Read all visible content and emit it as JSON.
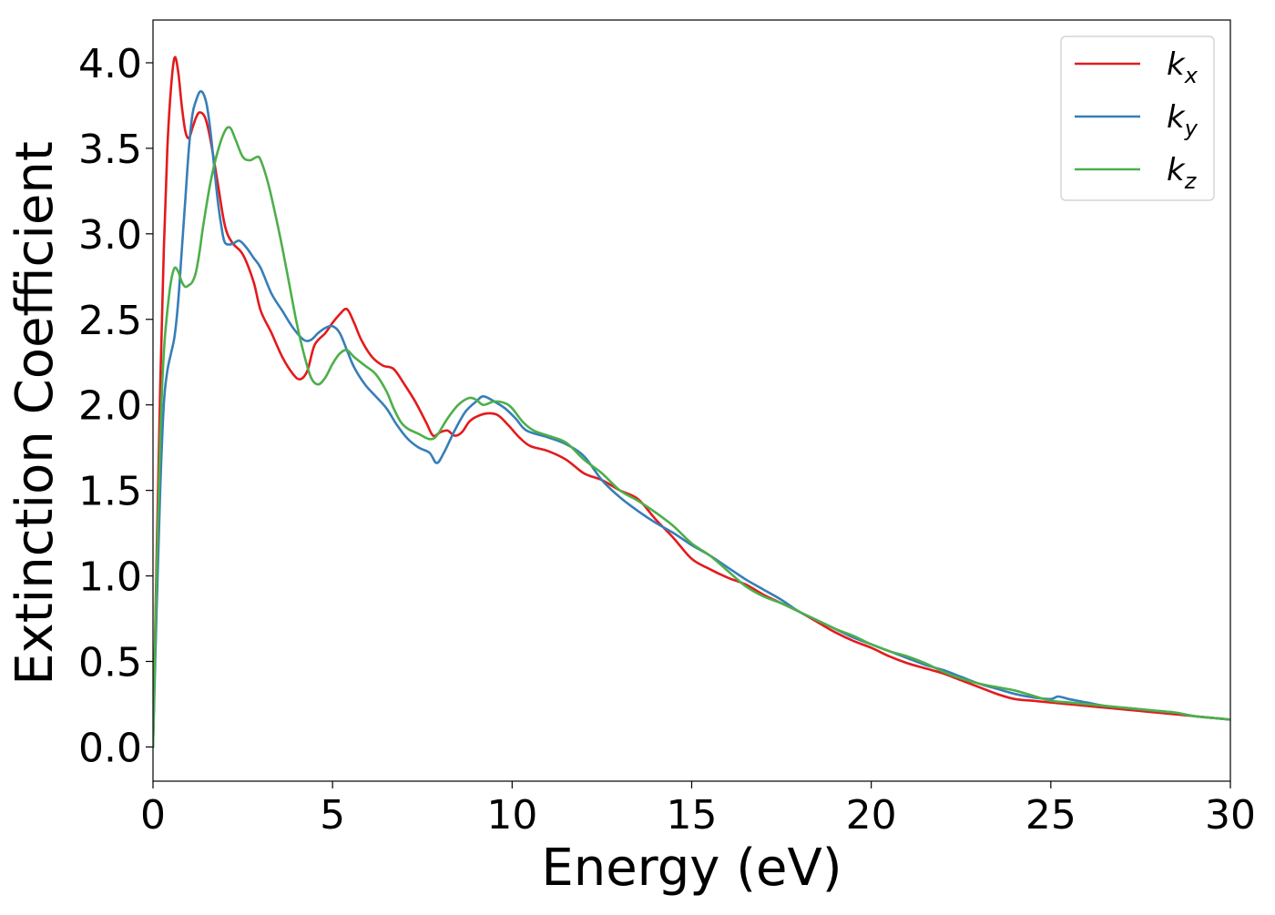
{
  "chart_data": {
    "type": "line",
    "title": "",
    "xlabel": "Energy (eV)",
    "ylabel": "Extinction Coefficient",
    "xlim": [
      0,
      30
    ],
    "ylim": [
      -0.2,
      4.25
    ],
    "xticks": [
      0,
      5,
      10,
      15,
      20,
      25,
      30
    ],
    "xtick_labels": [
      "0",
      "5",
      "10",
      "15",
      "20",
      "25",
      "30"
    ],
    "yticks": [
      0.0,
      0.5,
      1.0,
      1.5,
      2.0,
      2.5,
      3.0,
      3.5,
      4.0
    ],
    "ytick_labels": [
      "0.0",
      "0.5",
      "1.0",
      "1.5",
      "2.0",
      "2.5",
      "3.0",
      "3.5",
      "4.0"
    ],
    "grid": false,
    "legend_position": "top-right",
    "series": [
      {
        "name": "kx",
        "label_base": "k",
        "label_sub": "x",
        "color": "#e41a1c",
        "x": [
          0,
          0.1,
          0.2,
          0.3,
          0.4,
          0.5,
          0.6,
          0.7,
          0.8,
          0.9,
          1.0,
          1.1,
          1.2,
          1.3,
          1.45,
          1.6,
          1.8,
          2.0,
          2.2,
          2.5,
          2.8,
          3.0,
          3.3,
          3.6,
          3.9,
          4.1,
          4.3,
          4.5,
          4.8,
          5.0,
          5.2,
          5.4,
          5.6,
          5.8,
          6.1,
          6.4,
          6.7,
          7.0,
          7.3,
          7.6,
          7.8,
          8.0,
          8.2,
          8.4,
          8.6,
          8.8,
          9.0,
          9.3,
          9.6,
          9.9,
          10.2,
          10.5,
          11.0,
          11.5,
          12.0,
          12.5,
          13.0,
          13.5,
          14.0,
          14.5,
          15.0,
          15.5,
          16.0,
          16.5,
          17.0,
          17.5,
          18.0,
          18.5,
          19.0,
          19.5,
          20.0,
          20.5,
          21.0,
          21.5,
          22.0,
          22.5,
          23.0,
          23.5,
          24.0,
          24.5,
          25.0,
          25.5,
          26.0,
          26.5,
          27.0,
          27.5,
          28.0,
          28.5,
          29.0,
          29.5,
          30.0
        ],
        "y": [
          0.0,
          1.1,
          2.1,
          2.9,
          3.5,
          3.85,
          4.03,
          3.95,
          3.75,
          3.6,
          3.56,
          3.62,
          3.68,
          3.71,
          3.68,
          3.55,
          3.3,
          3.05,
          2.95,
          2.88,
          2.72,
          2.55,
          2.42,
          2.28,
          2.18,
          2.15,
          2.2,
          2.35,
          2.42,
          2.48,
          2.53,
          2.56,
          2.48,
          2.38,
          2.28,
          2.23,
          2.21,
          2.12,
          2.02,
          1.9,
          1.82,
          1.84,
          1.85,
          1.82,
          1.84,
          1.9,
          1.93,
          1.95,
          1.94,
          1.88,
          1.81,
          1.76,
          1.73,
          1.68,
          1.6,
          1.56,
          1.5,
          1.45,
          1.33,
          1.22,
          1.1,
          1.04,
          0.99,
          0.95,
          0.89,
          0.84,
          0.79,
          0.73,
          0.67,
          0.62,
          0.58,
          0.53,
          0.49,
          0.46,
          0.43,
          0.39,
          0.35,
          0.31,
          0.28,
          0.27,
          0.26,
          0.25,
          0.24,
          0.23,
          0.22,
          0.21,
          0.2,
          0.19,
          0.18,
          0.17,
          0.16
        ]
      },
      {
        "name": "ky",
        "label_base": "k",
        "label_sub": "y",
        "color": "#377eb8",
        "x": [
          0,
          0.1,
          0.2,
          0.3,
          0.4,
          0.5,
          0.6,
          0.7,
          0.8,
          0.9,
          1.0,
          1.1,
          1.2,
          1.3,
          1.4,
          1.5,
          1.6,
          1.7,
          1.8,
          1.9,
          2.0,
          2.2,
          2.4,
          2.6,
          2.8,
          3.0,
          3.3,
          3.6,
          3.9,
          4.2,
          4.4,
          4.6,
          4.8,
          5.0,
          5.2,
          5.4,
          5.6,
          5.9,
          6.2,
          6.5,
          6.8,
          7.1,
          7.4,
          7.7,
          7.9,
          8.1,
          8.4,
          8.7,
          9.0,
          9.2,
          9.5,
          9.8,
          10.1,
          10.4,
          11.0,
          11.5,
          12.0,
          12.5,
          13.0,
          13.5,
          14.0,
          14.5,
          15.0,
          15.5,
          16.0,
          16.5,
          17.0,
          17.5,
          18.0,
          18.5,
          19.0,
          19.5,
          20.0,
          20.5,
          21.0,
          21.5,
          22.0,
          22.5,
          23.0,
          23.5,
          24.0,
          24.5,
          25.0,
          25.2,
          25.5,
          26.0,
          26.5,
          27.0,
          27.5,
          28.0,
          28.5,
          29.0,
          29.5,
          30.0
        ],
        "y": [
          0.0,
          0.8,
          1.5,
          2.0,
          2.2,
          2.3,
          2.4,
          2.6,
          2.9,
          3.2,
          3.5,
          3.7,
          3.78,
          3.83,
          3.82,
          3.75,
          3.6,
          3.4,
          3.2,
          3.05,
          2.95,
          2.94,
          2.96,
          2.92,
          2.86,
          2.8,
          2.65,
          2.55,
          2.45,
          2.38,
          2.38,
          2.42,
          2.45,
          2.46,
          2.42,
          2.32,
          2.22,
          2.12,
          2.05,
          1.98,
          1.88,
          1.8,
          1.75,
          1.72,
          1.66,
          1.72,
          1.85,
          1.96,
          2.02,
          2.05,
          2.02,
          1.98,
          1.92,
          1.85,
          1.81,
          1.77,
          1.7,
          1.56,
          1.46,
          1.38,
          1.31,
          1.25,
          1.18,
          1.12,
          1.05,
          0.98,
          0.92,
          0.86,
          0.79,
          0.74,
          0.69,
          0.64,
          0.6,
          0.56,
          0.52,
          0.48,
          0.45,
          0.41,
          0.37,
          0.34,
          0.31,
          0.29,
          0.28,
          0.295,
          0.28,
          0.26,
          0.24,
          0.23,
          0.22,
          0.21,
          0.2,
          0.18,
          0.17,
          0.16
        ]
      },
      {
        "name": "kz",
        "label_base": "k",
        "label_sub": "z",
        "color": "#4daf4a",
        "x": [
          0,
          0.1,
          0.2,
          0.3,
          0.4,
          0.5,
          0.6,
          0.7,
          0.8,
          0.9,
          1.0,
          1.1,
          1.2,
          1.3,
          1.4,
          1.6,
          1.8,
          2.0,
          2.15,
          2.3,
          2.5,
          2.7,
          2.9,
          3.0,
          3.2,
          3.4,
          3.6,
          3.8,
          4.0,
          4.2,
          4.4,
          4.6,
          4.8,
          5.0,
          5.2,
          5.4,
          5.6,
          5.9,
          6.2,
          6.5,
          6.7,
          6.9,
          7.1,
          7.4,
          7.7,
          7.9,
          8.2,
          8.5,
          8.8,
          9.0,
          9.2,
          9.5,
          9.8,
          10.0,
          10.3,
          10.6,
          11.0,
          11.5,
          12.0,
          12.5,
          13.0,
          13.5,
          14.0,
          14.5,
          15.0,
          15.5,
          16.0,
          16.5,
          17.0,
          17.5,
          18.0,
          18.5,
          19.0,
          19.5,
          20.0,
          20.5,
          21.0,
          21.5,
          22.0,
          22.5,
          23.0,
          23.5,
          24.0,
          24.5,
          25.0,
          25.5,
          26.0,
          26.5,
          27.0,
          27.5,
          28.0,
          28.5,
          29.0,
          29.5,
          30.0
        ],
        "y": [
          0.0,
          1.0,
          1.8,
          2.3,
          2.55,
          2.72,
          2.8,
          2.78,
          2.72,
          2.69,
          2.7,
          2.72,
          2.78,
          2.9,
          3.05,
          3.3,
          3.48,
          3.6,
          3.62,
          3.55,
          3.45,
          3.43,
          3.45,
          3.43,
          3.3,
          3.12,
          2.92,
          2.7,
          2.48,
          2.3,
          2.16,
          2.12,
          2.16,
          2.24,
          2.3,
          2.32,
          2.28,
          2.23,
          2.18,
          2.08,
          1.98,
          1.9,
          1.86,
          1.83,
          1.8,
          1.82,
          1.92,
          2.0,
          2.04,
          2.03,
          2.0,
          2.02,
          2.01,
          1.98,
          1.9,
          1.85,
          1.82,
          1.78,
          1.68,
          1.6,
          1.5,
          1.44,
          1.37,
          1.29,
          1.19,
          1.12,
          1.03,
          0.94,
          0.88,
          0.84,
          0.79,
          0.74,
          0.69,
          0.65,
          0.6,
          0.56,
          0.53,
          0.49,
          0.44,
          0.4,
          0.37,
          0.35,
          0.33,
          0.3,
          0.27,
          0.26,
          0.25,
          0.24,
          0.23,
          0.22,
          0.21,
          0.2,
          0.18,
          0.17,
          0.16
        ]
      }
    ]
  }
}
